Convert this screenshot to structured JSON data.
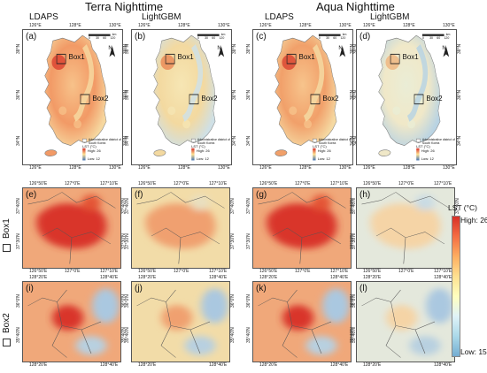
{
  "headers": {
    "terra": "Terra Nighttime",
    "aqua": "Aqua Nighttime",
    "ldaps_1": "LDAPS",
    "lightgbm_1": "LightGBM",
    "ldaps_2": "LDAPS",
    "lightgbm_2": "LightGBM"
  },
  "map_panels": [
    {
      "label": "(a)",
      "box1": "Box1",
      "box2": "Box2"
    },
    {
      "label": "(b)",
      "box1": "Box1",
      "box2": "Box2"
    },
    {
      "label": "(c)",
      "box1": "Box1",
      "box2": "Box2"
    },
    {
      "label": "(d)",
      "box1": "Box1",
      "box2": "Box2"
    }
  ],
  "map_axes": {
    "top_ticks": [
      "126°E",
      "128°E",
      "130°E"
    ],
    "bottom_ticks": [
      "126°E",
      "128°E",
      "130°E"
    ],
    "left_ticks": [
      "38°N",
      "36°N",
      "34°N"
    ],
    "right_ticks": [
      "38°N",
      "36°N",
      "34°N"
    ]
  },
  "map_legend": {
    "admin": "Administrative district of South Korea",
    "lst_title": "LST (°C)",
    "high": "High: 26",
    "low": "Low: 12",
    "scale_km": [
      "0",
      "30",
      "60",
      "120"
    ],
    "km": "km",
    "north": "N"
  },
  "zoom_panels": {
    "box1": [
      "(e)",
      "(f)",
      "(g)",
      "(h)"
    ],
    "box2": [
      "(i)",
      "(j)",
      "(k)",
      "(l)"
    ]
  },
  "box1_axes": {
    "top_ticks": [
      "126°50'E",
      "127°0'E",
      "127°10'E"
    ],
    "bottom_ticks": [
      "126°50'E",
      "127°0'E",
      "127°10'E"
    ],
    "left_ticks": [
      "37°40'N",
      "37°30'N"
    ],
    "right_ticks": [
      "37°40'N",
      "37°30'N"
    ]
  },
  "box2_axes": {
    "top_ticks": [
      "128°20'E",
      "128°40'E"
    ],
    "bottom_ticks": [
      "128°20'E",
      "128°40'E"
    ],
    "left_ticks": [
      "36°0'N",
      "35°40'N"
    ],
    "right_ticks": [
      "36°0'N",
      "35°40'N"
    ]
  },
  "row_labels": {
    "box1": "Box1",
    "box2": "Box2"
  },
  "colorbar": {
    "title": "LST (°C)",
    "high": "High: 26",
    "low": "Low: 15",
    "colors": [
      "#d73027",
      "#f46d43",
      "#fdae61",
      "#fee090",
      "#ffffbf",
      "#e0f3f8",
      "#abd9e9",
      "#74add1"
    ]
  }
}
